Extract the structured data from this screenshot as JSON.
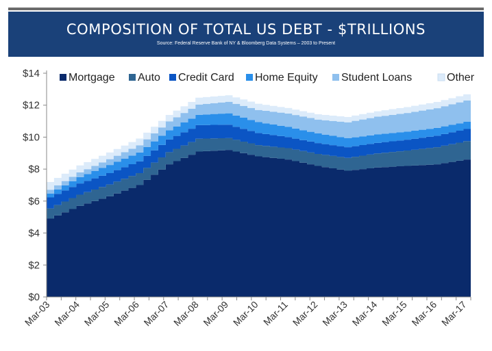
{
  "header": {
    "title": "COMPOSITION OF TOTAL US DEBT - $TRILLIONS",
    "subtitle": "Source:  Federal Reserve Bank of NY & Bloomberg Data Systems – 2003 to Present"
  },
  "chart_data": {
    "type": "area",
    "stacked": true,
    "title": "COMPOSITION OF TOTAL US DEBT - $TRILLIONS",
    "xlabel": "",
    "ylabel": "",
    "ylim": [
      0,
      14
    ],
    "y_ticks": [
      "$0",
      "$2",
      "$4",
      "$6",
      "$8",
      "$10",
      "$12",
      "$14"
    ],
    "x_tick_labels": [
      "Mar-03",
      "Mar-04",
      "Mar-05",
      "Mar-06",
      "Mar-07",
      "Mar-08",
      "Mar-09",
      "Mar-10",
      "Mar-11",
      "Mar-12",
      "Mar-13",
      "Mar-14",
      "Mar-15",
      "Mar-16",
      "Mar-17"
    ],
    "grid": false,
    "legend_position": "top",
    "x": [
      "Mar-03",
      "Mar-04",
      "Mar-05",
      "Mar-06",
      "Mar-07",
      "Mar-08",
      "Mar-09",
      "Mar-10",
      "Mar-11",
      "Mar-12",
      "Mar-13",
      "Mar-14",
      "Mar-15",
      "Mar-16",
      "Mar-17"
    ],
    "series": [
      {
        "name": "Mortgage",
        "color": "#0a2a6b",
        "values": [
          4.9,
          5.7,
          6.3,
          7.0,
          8.3,
          9.1,
          9.2,
          8.8,
          8.6,
          8.2,
          7.9,
          8.1,
          8.2,
          8.3,
          8.6
        ]
      },
      {
        "name": "Auto",
        "color": "#2f6592",
        "values": [
          0.64,
          0.7,
          0.74,
          0.75,
          0.76,
          0.8,
          0.74,
          0.7,
          0.71,
          0.75,
          0.8,
          0.88,
          0.96,
          1.07,
          1.15
        ]
      },
      {
        "name": "Credit Card",
        "color": "#0b55c4",
        "values": [
          0.69,
          0.7,
          0.71,
          0.74,
          0.79,
          0.85,
          0.84,
          0.76,
          0.69,
          0.68,
          0.67,
          0.66,
          0.68,
          0.72,
          0.76
        ]
      },
      {
        "name": "Home Equity",
        "color": "#2a8fea",
        "values": [
          0.24,
          0.4,
          0.51,
          0.55,
          0.58,
          0.65,
          0.71,
          0.68,
          0.64,
          0.6,
          0.56,
          0.53,
          0.51,
          0.49,
          0.45
        ]
      },
      {
        "name": "Student Loans",
        "color": "#8fc0ee",
        "values": [
          0.24,
          0.29,
          0.36,
          0.45,
          0.55,
          0.64,
          0.72,
          0.76,
          0.84,
          0.87,
          1.0,
          1.11,
          1.16,
          1.23,
          1.34
        ]
      },
      {
        "name": "Other",
        "color": "#dcebfa",
        "values": [
          0.48,
          0.44,
          0.42,
          0.42,
          0.41,
          0.43,
          0.41,
          0.39,
          0.34,
          0.33,
          0.33,
          0.34,
          0.37,
          0.39,
          0.38
        ]
      }
    ]
  }
}
